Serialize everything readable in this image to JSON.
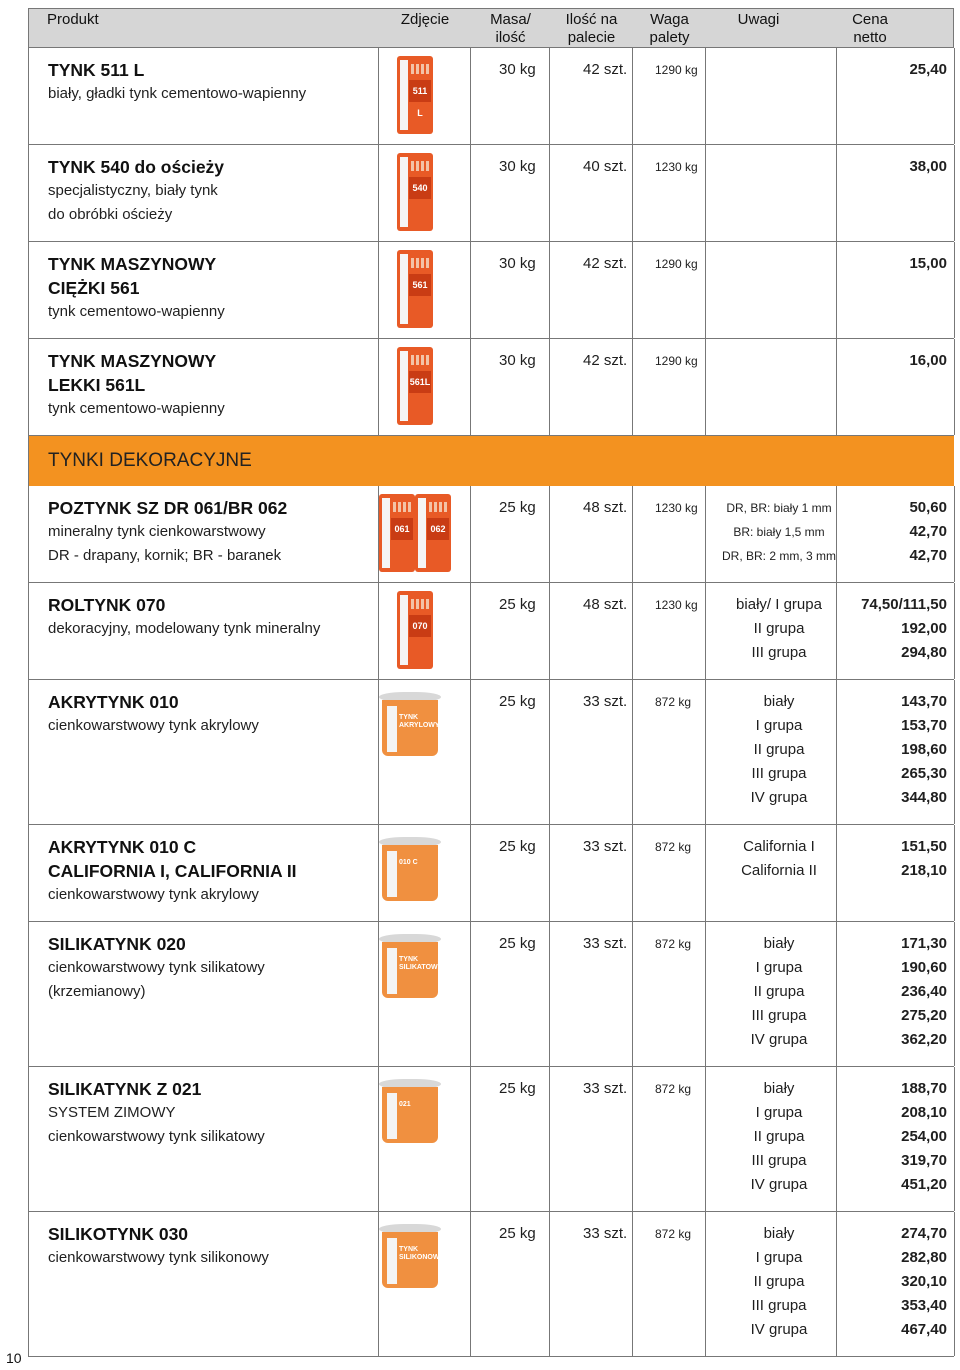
{
  "header": {
    "product": "Produkt",
    "photo": "Zdjęcie",
    "mass": [
      "Masa/",
      "ilość"
    ],
    "qty": [
      "Ilość na",
      "palecie"
    ],
    "weight": [
      "Waga",
      "palety"
    ],
    "remarks": "Uwagi",
    "price": [
      "Cena",
      "netto"
    ]
  },
  "rows1": [
    {
      "name": [
        "TYNK 511 L"
      ],
      "desc": [
        "biały, gładki tynk cementowo-wapienny"
      ],
      "mass": "30 kg",
      "qty": "42 szt.",
      "weight": "1290 kg",
      "remarks": [
        ""
      ],
      "prices": [
        "25,40"
      ],
      "pic": "bag",
      "label": "511 L"
    },
    {
      "name": [
        "TYNK 540 do ościeży"
      ],
      "desc": [
        "specjalistyczny, biały tynk",
        "do obróbki ościeży"
      ],
      "mass": "30 kg",
      "qty": "40 szt.",
      "weight": "1230 kg",
      "remarks": [
        ""
      ],
      "prices": [
        "38,00"
      ],
      "pic": "bag",
      "label": "540"
    },
    {
      "name": [
        "TYNK MASZYNOWY",
        "CIĘŻKI 561"
      ],
      "desc": [
        "tynk cementowo-wapienny"
      ],
      "mass": "30 kg",
      "qty": "42 szt.",
      "weight": "1290 kg",
      "remarks": [
        ""
      ],
      "prices": [
        "15,00"
      ],
      "pic": "bag",
      "label": "561"
    },
    {
      "name": [
        "TYNK MASZYNOWY",
        "LEKKI 561L"
      ],
      "desc": [
        "tynk cementowo-wapienny"
      ],
      "mass": "30 kg",
      "qty": "42 szt.",
      "weight": "1290 kg",
      "remarks": [
        ""
      ],
      "prices": [
        "16,00"
      ],
      "pic": "bag",
      "label": "561L"
    }
  ],
  "section_title": "TYNKI DEKORACYJNE",
  "rows2": [
    {
      "name": [
        "POZTYNK SZ DR 061/BR 062"
      ],
      "desc": [
        "mineralny tynk cienkowarstwowy",
        "DR - drapany, kornik; BR - baranek"
      ],
      "mass": "25 kg",
      "qty": "48 szt.",
      "weight": "1230 kg",
      "remarks": [
        "DR, BR: biały 1 mm",
        "BR: biały 1,5 mm",
        "DR, BR: 2 mm, 3 mm"
      ],
      "prices": [
        "50,60",
        "42,70",
        "42,70"
      ],
      "pic": "twobags",
      "label": "061",
      "label2": "062"
    },
    {
      "name": [
        "ROLTYNK 070"
      ],
      "desc": [
        "dekoracyjny, modelowany tynk mineralny"
      ],
      "mass": "25 kg",
      "qty": "48 szt.",
      "weight": "1230 kg",
      "remarks": [
        "biały/ I grupa",
        "II grupa",
        "III grupa"
      ],
      "prices": [
        "74,50/111,50",
        "192,00",
        "294,80"
      ],
      "pic": "bag",
      "label": "070"
    },
    {
      "name": [
        "AKRYTYNK 010"
      ],
      "desc": [
        "cienkowarstwowy tynk akrylowy"
      ],
      "mass": "25 kg",
      "qty": "33 szt.",
      "weight": "872 kg",
      "remarks": [
        "biały",
        "I grupa",
        "II grupa",
        "III grupa",
        "IV grupa"
      ],
      "prices": [
        "143,70",
        "153,70",
        "198,60",
        "265,30",
        "344,80"
      ],
      "pic": "bucket",
      "label": "TYNK AKRYLOWY"
    },
    {
      "name": [
        "AKRYTYNK 010 C",
        "CALIFORNIA I, CALIFORNIA II"
      ],
      "desc": [
        "cienkowarstwowy tynk akrylowy"
      ],
      "mass": "25 kg",
      "qty": "33 szt.",
      "weight": "872 kg",
      "remarks": [
        "California I",
        "California II"
      ],
      "prices": [
        "151,50",
        "218,10"
      ],
      "pic": "bucket",
      "label": "010 C"
    },
    {
      "name": [
        "SILIKATYNK 020"
      ],
      "desc": [
        "cienkowarstwowy tynk silikatowy",
        "(krzemianowy)"
      ],
      "mass": "25 kg",
      "qty": "33 szt.",
      "weight": "872 kg",
      "remarks": [
        "biały",
        "I grupa",
        "II grupa",
        "III grupa",
        "IV grupa"
      ],
      "prices": [
        "171,30",
        "190,60",
        "236,40",
        "275,20",
        "362,20"
      ],
      "pic": "bucket",
      "label": "TYNK SILIKATOWY"
    },
    {
      "name": [
        "SILIKATYNK Z 021"
      ],
      "desc": [
        "SYSTEM ZIMOWY",
        "cienkowarstwowy tynk silikatowy"
      ],
      "mass": "25 kg",
      "qty": "33 szt.",
      "weight": "872 kg",
      "remarks": [
        "biały",
        "I grupa",
        "II grupa",
        "III grupa",
        "IV grupa"
      ],
      "prices": [
        "188,70",
        "208,10",
        "254,00",
        "319,70",
        "451,20"
      ],
      "pic": "bucket",
      "label": "021"
    },
    {
      "name": [
        "SILIKOTYNK 030"
      ],
      "desc": [
        "cienkowarstwowy tynk silikonowy"
      ],
      "mass": "25 kg",
      "qty": "33 szt.",
      "weight": "872 kg",
      "remarks": [
        "biały",
        "I grupa",
        "II grupa",
        "III grupa",
        "IV grupa"
      ],
      "prices": [
        "274,70",
        "282,80",
        "320,10",
        "353,40",
        "467,40"
      ],
      "pic": "bucket",
      "label": "TYNK SILIKONOWY"
    }
  ],
  "page_number": "10",
  "colors": {
    "section": "#f39220",
    "header": "#d6d6d6",
    "bag": "#e85a26",
    "bucket": "#f09040"
  }
}
